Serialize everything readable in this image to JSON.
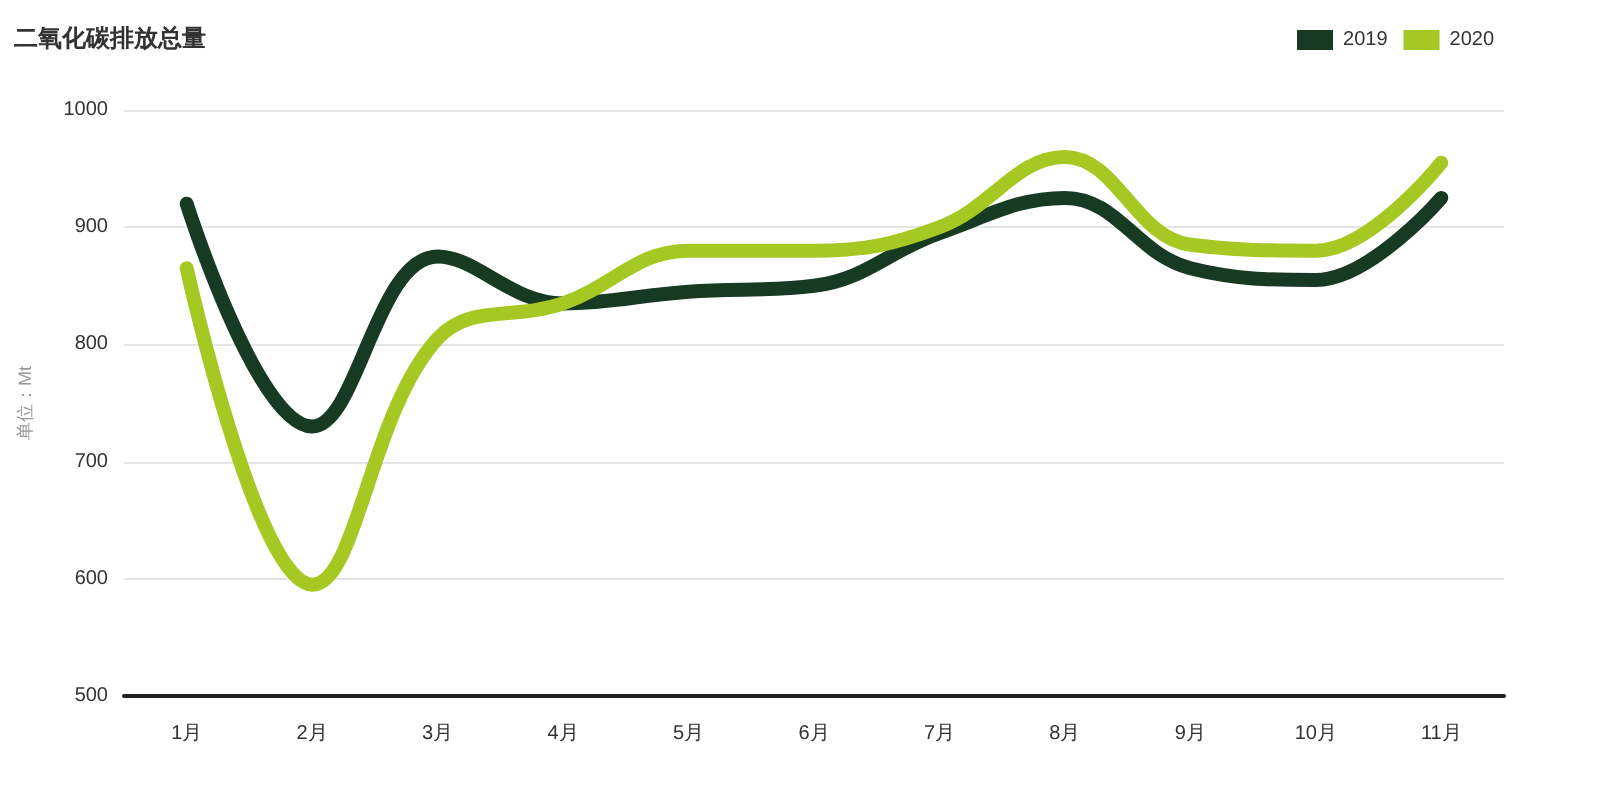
{
  "chart_data": {
    "type": "line",
    "title": "二氧化碳排放总量",
    "ylabel": "单位：Mt",
    "categories": [
      "1月",
      "2月",
      "3月",
      "4月",
      "5月",
      "6月",
      "7月",
      "8月",
      "9月",
      "10月",
      "11月"
    ],
    "series": [
      {
        "name": "2019",
        "color": "#163a22",
        "values": [
          920,
          730,
          875,
          835,
          845,
          850,
          895,
          925,
          865,
          855,
          925
        ]
      },
      {
        "name": "2020",
        "color": "#a6c823",
        "values": [
          865,
          595,
          805,
          835,
          880,
          880,
          900,
          960,
          885,
          880,
          955
        ]
      }
    ],
    "ylim": [
      500,
      1000
    ],
    "yticks": [
      500,
      600,
      700,
      800,
      900,
      1000
    ],
    "grid": "y",
    "legend": "top right",
    "marker": "none",
    "line_style": "solid"
  }
}
